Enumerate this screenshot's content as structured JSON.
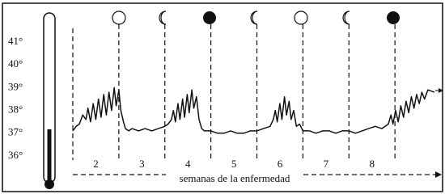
{
  "chart_data": {
    "type": "line",
    "xlabel": "semanas de la enfermedad",
    "categories": [
      "2",
      "3",
      "4",
      "5",
      "6",
      "7",
      "8"
    ],
    "x": [
      0,
      0.5,
      1,
      1.5,
      2,
      2.3,
      2.7,
      3.1,
      3.5,
      3.9,
      4.3,
      4.7,
      5.1,
      5.5,
      5.9,
      6.3,
      6.6,
      7.0,
      7.3,
      7.7,
      8.0,
      8.5,
      9,
      10,
      11,
      12,
      13,
      14,
      14.5,
      15,
      15.3,
      15.6,
      16.0,
      16.3,
      16.7,
      17.0,
      17.4,
      17.7,
      18.1,
      18.4,
      18.8,
      19.2,
      19.6,
      20,
      21,
      22,
      23,
      24,
      25,
      26,
      27,
      28,
      29,
      30,
      30.5,
      30.8,
      31.1,
      31.5,
      31.8,
      32.2,
      32.5,
      32.9,
      33.2,
      33.6,
      34,
      34.5,
      35,
      36,
      37,
      38,
      39,
      40,
      41,
      42,
      43,
      44,
      45,
      46,
      47,
      48,
      48.4,
      48.7,
      49.1,
      49.5,
      49.9,
      50.3,
      50.7,
      51.1,
      51.5,
      51.9,
      52.3,
      52.7,
      53.1,
      53.5,
      54,
      55
    ],
    "values": [
      37.1,
      37.3,
      37.4,
      37.8,
      37.6,
      38.1,
      37.5,
      38.3,
      37.6,
      38.5,
      37.7,
      38.7,
      37.8,
      38.8,
      38.0,
      39.0,
      38.2,
      38.9,
      38.0,
      37.5,
      37.2,
      37.1,
      37.2,
      37.1,
      37.2,
      37.1,
      37.2,
      37.3,
      37.4,
      37.6,
      38.0,
      37.5,
      38.3,
      37.6,
      38.5,
      37.7,
      38.7,
      37.9,
      38.9,
      38.1,
      38.6,
      37.6,
      37.2,
      37.1,
      37.1,
      37.0,
      37.0,
      37.1,
      37.0,
      37.0,
      37.1,
      37.1,
      37.2,
      37.3,
      37.6,
      38.0,
      37.5,
      38.3,
      37.6,
      38.6,
      37.8,
      38.4,
      37.6,
      38.0,
      37.3,
      37.4,
      37.1,
      37.1,
      37.0,
      37.1,
      37.1,
      37.0,
      37.1,
      37.1,
      37.0,
      37.1,
      37.2,
      37.3,
      37.2,
      37.4,
      37.8,
      37.4,
      38.0,
      37.5,
      38.2,
      37.7,
      38.4,
      37.9,
      38.6,
      38.1,
      38.7,
      38.3,
      38.8,
      38.5,
      38.9,
      38.8
    ],
    "color": "#111111",
    "xlim": [
      0,
      56
    ],
    "ylim": [
      35.5,
      41.5
    ],
    "yticks": [
      {
        "value": 36,
        "label": "36°"
      },
      {
        "value": 37,
        "label": "37°"
      },
      {
        "value": 38,
        "label": "38°"
      },
      {
        "value": 39,
        "label": "39°"
      },
      {
        "value": 40,
        "label": "40°"
      },
      {
        "value": 41,
        "label": "41°"
      }
    ]
  }
}
